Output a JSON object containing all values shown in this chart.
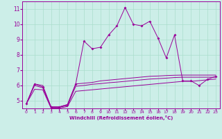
{
  "xlabel": "Windchill (Refroidissement éolien,°C)",
  "background_color": "#cceee8",
  "grid_color": "#aaddcc",
  "line_color": "#990099",
  "x_values": [
    0,
    1,
    2,
    3,
    4,
    5,
    6,
    7,
    8,
    9,
    10,
    11,
    12,
    13,
    14,
    15,
    16,
    17,
    18,
    19,
    20,
    21,
    22,
    23
  ],
  "series1": [
    4.8,
    6.1,
    5.9,
    4.6,
    4.6,
    4.75,
    6.1,
    8.9,
    8.4,
    8.5,
    9.3,
    9.9,
    11.1,
    10.0,
    9.9,
    10.2,
    9.1,
    7.8,
    9.3,
    6.3,
    6.3,
    6.0,
    6.4,
    6.6
  ],
  "series2": [
    4.8,
    6.1,
    6.0,
    4.6,
    4.6,
    4.75,
    6.1,
    6.15,
    6.2,
    6.3,
    6.35,
    6.4,
    6.45,
    6.5,
    6.55,
    6.6,
    6.62,
    6.65,
    6.67,
    6.68,
    6.68,
    6.68,
    6.68,
    6.68
  ],
  "series3": [
    4.8,
    6.0,
    5.85,
    4.58,
    4.58,
    4.68,
    5.95,
    6.0,
    6.08,
    6.12,
    6.18,
    6.22,
    6.27,
    6.32,
    6.37,
    6.42,
    6.45,
    6.48,
    6.52,
    6.54,
    6.54,
    6.54,
    6.54,
    6.54
  ],
  "series4": [
    4.8,
    5.75,
    5.72,
    4.52,
    4.52,
    4.62,
    5.62,
    5.67,
    5.72,
    5.77,
    5.82,
    5.87,
    5.92,
    5.97,
    6.02,
    6.07,
    6.12,
    6.17,
    6.22,
    6.27,
    6.27,
    6.32,
    6.37,
    6.42
  ],
  "ylim": [
    4.5,
    11.5
  ],
  "xlim": [
    -0.5,
    23.5
  ],
  "yticks": [
    5,
    6,
    7,
    8,
    9,
    10,
    11
  ],
  "xticks": [
    0,
    1,
    2,
    3,
    4,
    5,
    6,
    7,
    8,
    9,
    10,
    11,
    12,
    13,
    14,
    15,
    16,
    17,
    18,
    19,
    20,
    21,
    22,
    23
  ],
  "xtick_labels": [
    "0",
    "1",
    "2",
    "3",
    "4",
    "5",
    "6",
    "7",
    "8",
    "9",
    "10",
    "11",
    "12",
    "13",
    "14",
    "15",
    "16",
    "17",
    "18",
    "19",
    "20",
    "21",
    "22",
    "23"
  ]
}
